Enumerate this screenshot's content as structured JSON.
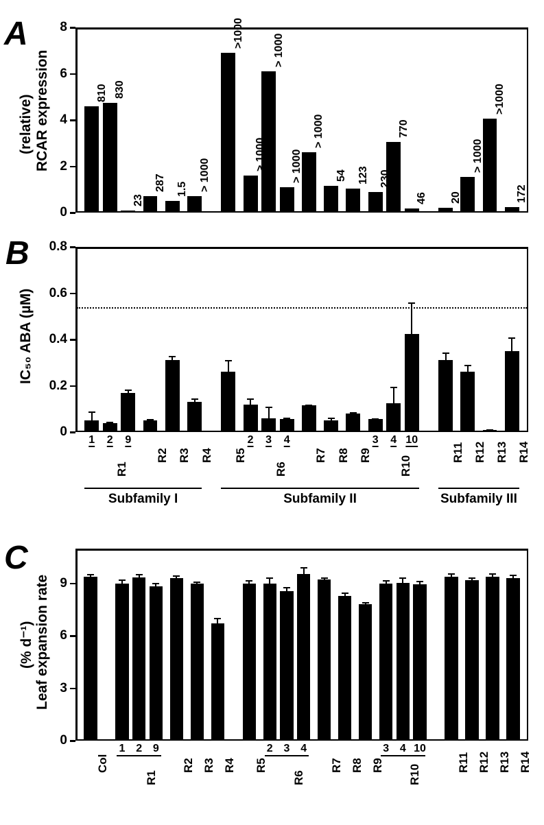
{
  "figure": {
    "background_color": "#ffffff",
    "bar_color": "#000000",
    "axis_color": "#000000",
    "text_color": "#000000",
    "font_weight": "bold",
    "panel_label_fontsize": 48,
    "subfamilies": [
      {
        "name": "Subfamily I",
        "start": "R1",
        "end": "R4"
      },
      {
        "name": "Subfamily II",
        "start": "R5",
        "end": "R10"
      },
      {
        "name": "Subfamily III",
        "start": "R11",
        "end": "R14"
      }
    ],
    "x_groups": [
      {
        "id": "R1",
        "members": [
          "1",
          "2",
          "9"
        ]
      },
      {
        "id": "R2",
        "members": [
          ""
        ]
      },
      {
        "id": "R3",
        "members": [
          ""
        ]
      },
      {
        "id": "R4",
        "members": [
          ""
        ]
      },
      {
        "id": "R5",
        "members": [
          ""
        ]
      },
      {
        "id": "R6",
        "members": [
          "2",
          "3",
          "4"
        ]
      },
      {
        "id": "R7",
        "members": [
          ""
        ]
      },
      {
        "id": "R8",
        "members": [
          ""
        ]
      },
      {
        "id": "R9",
        "members": [
          ""
        ]
      },
      {
        "id": "R10",
        "members": [
          "3",
          "4",
          "10"
        ]
      },
      {
        "id": "R11",
        "members": [
          ""
        ]
      },
      {
        "id": "R12",
        "members": [
          ""
        ]
      },
      {
        "id": "R13",
        "members": [
          ""
        ]
      },
      {
        "id": "R14",
        "members": [
          ""
        ]
      }
    ],
    "panelA": {
      "label": "A",
      "ylabel": "RCAR expression\n(relative)",
      "ylabel_fontsize": 21,
      "ylim": [
        0,
        8
      ],
      "yticks": [
        0,
        2,
        4,
        6,
        8
      ],
      "annot_fontsize": 16,
      "bars": [
        {
          "group": "R1",
          "member": "1",
          "value": 4.6,
          "annot": "810"
        },
        {
          "group": "R1",
          "member": "2",
          "value": 4.75,
          "annot": "830"
        },
        {
          "group": "R1",
          "member": "9",
          "value": 0.1,
          "annot": "23"
        },
        {
          "group": "R2",
          "member": "",
          "value": 0.7,
          "annot": "287"
        },
        {
          "group": "R3",
          "member": "",
          "value": 0.5,
          "annot": "1.5"
        },
        {
          "group": "R4",
          "member": "",
          "value": 0.7,
          "annot": "> 1000"
        },
        {
          "group": "R5",
          "member": "",
          "value": 6.9,
          "annot": ">1000"
        },
        {
          "group": "R6",
          "member": "2",
          "value": 1.6,
          "annot": "> 1000"
        },
        {
          "group": "R6",
          "member": "3",
          "value": 6.1,
          "annot": "> 1000"
        },
        {
          "group": "R6",
          "member": "4",
          "value": 1.1,
          "annot": "> 1000"
        },
        {
          "group": "R7",
          "member": "",
          "value": 2.6,
          "annot": "> 1000"
        },
        {
          "group": "R8",
          "member": "",
          "value": 1.15,
          "annot": "54"
        },
        {
          "group": "R9",
          "member": "",
          "value": 1.05,
          "annot": "123"
        },
        {
          "group": "R10",
          "member": "3",
          "value": 0.9,
          "annot": "230"
        },
        {
          "group": "R10",
          "member": "4",
          "value": 3.05,
          "annot": "770"
        },
        {
          "group": "R10",
          "member": "10",
          "value": 0.18,
          "annot": "46"
        },
        {
          "group": "R11",
          "member": "",
          "value": 0.2,
          "annot": "20"
        },
        {
          "group": "R12",
          "member": "",
          "value": 1.55,
          "annot": "> 1000"
        },
        {
          "group": "R13",
          "member": "",
          "value": 4.05,
          "annot": ">1000"
        },
        {
          "group": "R14",
          "member": "",
          "value": 0.25,
          "annot": "172"
        }
      ]
    },
    "panelB": {
      "label": "B",
      "ylabel": "IC₅₀ ABA (µM)",
      "ylabel_fontsize": 21,
      "ylim": [
        0,
        0.8
      ],
      "yticks": [
        0,
        0.2,
        0.4,
        0.6,
        0.8
      ],
      "ref_line": 0.54,
      "bars": [
        {
          "group": "R1",
          "member": "1",
          "value": 0.05,
          "err": 0.04
        },
        {
          "group": "R1",
          "member": "2",
          "value": 0.04,
          "err": 0.005
        },
        {
          "group": "R1",
          "member": "9",
          "value": 0.17,
          "err": 0.015
        },
        {
          "group": "R2",
          "member": "",
          "value": 0.05,
          "err": 0.005
        },
        {
          "group": "R3",
          "member": "",
          "value": 0.31,
          "err": 0.02
        },
        {
          "group": "R4",
          "member": "",
          "value": 0.13,
          "err": 0.015
        },
        {
          "group": "R5",
          "member": "",
          "value": 0.26,
          "err": 0.05
        },
        {
          "group": "R6",
          "member": "2",
          "value": 0.12,
          "err": 0.025
        },
        {
          "group": "R6",
          "member": "3",
          "value": 0.06,
          "err": 0.05
        },
        {
          "group": "R6",
          "member": "4",
          "value": 0.055,
          "err": 0.008
        },
        {
          "group": "R7",
          "member": "",
          "value": 0.115,
          "err": 0.005
        },
        {
          "group": "R8",
          "member": "",
          "value": 0.05,
          "err": 0.012
        },
        {
          "group": "R9",
          "member": "",
          "value": 0.08,
          "err": 0.005
        },
        {
          "group": "R10",
          "member": "3",
          "value": 0.055,
          "err": 0.005
        },
        {
          "group": "R10",
          "member": "4",
          "value": 0.125,
          "err": 0.07
        },
        {
          "group": "R10",
          "member": "10",
          "value": 0.425,
          "err": 0.135
        },
        {
          "group": "R11",
          "member": "",
          "value": 0.31,
          "err": 0.035
        },
        {
          "group": "R12",
          "member": "",
          "value": 0.26,
          "err": 0.03
        },
        {
          "group": "R13",
          "member": "",
          "value": 0.01,
          "err": 0.003
        },
        {
          "group": "R14",
          "member": "",
          "value": 0.35,
          "err": 0.06
        }
      ]
    },
    "panelC": {
      "label": "C",
      "ylabel": "Leaf expansion rate\n(% d⁻¹)",
      "ylabel_fontsize": 21,
      "ylim": [
        0,
        11
      ],
      "yticks": [
        0,
        3,
        6,
        9
      ],
      "bars": [
        {
          "group": "Col",
          "member": "",
          "value": 9.4,
          "err": 0.15
        },
        {
          "group": "R1",
          "member": "1",
          "value": 9.0,
          "err": 0.25
        },
        {
          "group": "R1",
          "member": "2",
          "value": 9.35,
          "err": 0.2
        },
        {
          "group": "R1",
          "member": "9",
          "value": 8.85,
          "err": 0.2
        },
        {
          "group": "R2",
          "member": "",
          "value": 9.3,
          "err": 0.15
        },
        {
          "group": "R3",
          "member": "",
          "value": 9.0,
          "err": 0.1
        },
        {
          "group": "R4",
          "member": "",
          "value": 6.7,
          "err": 0.35
        },
        {
          "group": "R5",
          "member": "",
          "value": 9.0,
          "err": 0.2
        },
        {
          "group": "R6",
          "member": "2",
          "value": 9.0,
          "err": 0.35
        },
        {
          "group": "R6",
          "member": "3",
          "value": 8.55,
          "err": 0.25
        },
        {
          "group": "R6",
          "member": "4",
          "value": 9.55,
          "err": 0.4
        },
        {
          "group": "R7",
          "member": "",
          "value": 9.25,
          "err": 0.1
        },
        {
          "group": "R8",
          "member": "",
          "value": 8.3,
          "err": 0.2
        },
        {
          "group": "R9",
          "member": "",
          "value": 7.8,
          "err": 0.15
        },
        {
          "group": "R10",
          "member": "3",
          "value": 9.0,
          "err": 0.2
        },
        {
          "group": "R10",
          "member": "4",
          "value": 9.05,
          "err": 0.3
        },
        {
          "group": "R10",
          "member": "10",
          "value": 8.95,
          "err": 0.2
        },
        {
          "group": "R11",
          "member": "",
          "value": 9.4,
          "err": 0.2
        },
        {
          "group": "R12",
          "member": "",
          "value": 9.2,
          "err": 0.15
        },
        {
          "group": "R13",
          "member": "",
          "value": 9.4,
          "err": 0.2
        },
        {
          "group": "R14",
          "member": "",
          "value": 9.3,
          "err": 0.2
        }
      ]
    }
  }
}
